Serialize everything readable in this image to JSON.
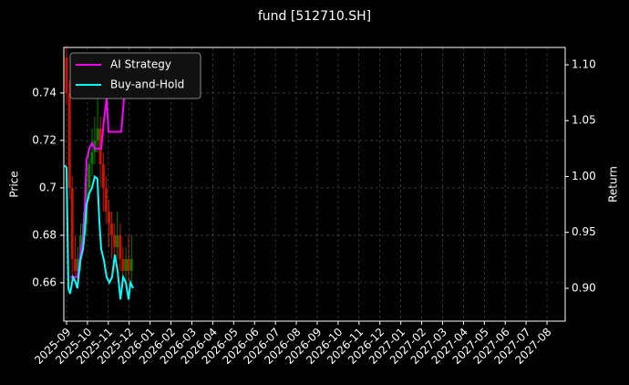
{
  "chart_data": {
    "type": "candlestick",
    "title": "fund [512710.SH]",
    "ylabel": "Price",
    "y2label": "Return",
    "x": [
      0,
      0.14,
      0.27,
      0.41,
      0.54,
      0.68,
      0.81,
      0.95,
      1.08,
      1.22,
      1.35,
      1.49,
      1.62,
      1.76,
      1.89,
      2.03,
      2.16,
      2.3,
      2.43,
      2.57,
      2.7,
      2.84,
      2.97,
      3.11
    ],
    "open": [
      0.755,
      0.74,
      0.7,
      0.67,
      0.665,
      0.67,
      0.68,
      0.685,
      0.7,
      0.71,
      0.715,
      0.72,
      0.725,
      0.71,
      0.7,
      0.69,
      0.685,
      0.68,
      0.675,
      0.68,
      0.67,
      0.665,
      0.67,
      0.665
    ],
    "high": [
      0.76,
      0.745,
      0.705,
      0.68,
      0.675,
      0.685,
      0.69,
      0.71,
      0.715,
      0.725,
      0.73,
      0.74,
      0.73,
      0.715,
      0.705,
      0.695,
      0.69,
      0.685,
      0.69,
      0.685,
      0.675,
      0.675,
      0.68,
      0.68
    ],
    "low": [
      0.735,
      0.695,
      0.66,
      0.66,
      0.66,
      0.665,
      0.675,
      0.68,
      0.695,
      0.705,
      0.71,
      0.715,
      0.7,
      0.69,
      0.685,
      0.675,
      0.67,
      0.665,
      0.67,
      0.665,
      0.66,
      0.66,
      0.66,
      0.66
    ],
    "close": [
      0.74,
      0.7,
      0.67,
      0.665,
      0.67,
      0.68,
      0.685,
      0.7,
      0.71,
      0.715,
      0.72,
      0.725,
      0.71,
      0.7,
      0.69,
      0.685,
      0.68,
      0.675,
      0.68,
      0.67,
      0.665,
      0.67,
      0.665,
      0.67
    ],
    "up_color": "#008000",
    "down_color": "#cc1100",
    "series": [
      {
        "name": "AI Strategy",
        "color": "#ff00ff",
        "axis": "y2",
        "x": [
          0.17,
          0.31,
          0.52,
          0.66,
          0.79,
          0.87,
          0.96,
          1.09,
          1.22,
          1.35,
          1.48,
          1.66,
          1.79,
          1.92,
          2.01,
          2.18,
          2.45,
          2.62,
          2.75,
          2.93,
          3.19
        ],
        "values": [
          0.91,
          0.91,
          0.91,
          0.93,
          0.945,
          0.97,
          1.015,
          1.025,
          1.03,
          1.025,
          1.025,
          1.025,
          1.05,
          1.07,
          1.04,
          1.04,
          1.04,
          1.04,
          1.07,
          1.09,
          1.1
        ]
      },
      {
        "name": "Buy-and-Hold",
        "color": "#00ffff",
        "axis": "y2",
        "x": [
          -0.09,
          0,
          0.09,
          0.17,
          0.31,
          0.44,
          0.52,
          0.66,
          0.79,
          0.87,
          0.96,
          1.09,
          1.22,
          1.35,
          1.48,
          1.57,
          1.66,
          1.79,
          1.92,
          2.05,
          2.18,
          2.31,
          2.45,
          2.58,
          2.71,
          2.84,
          2.97,
          3.06,
          3.19
        ],
        "values": [
          1.01,
          1.008,
          0.9,
          0.895,
          0.91,
          0.905,
          0.9,
          0.925,
          0.935,
          0.95,
          0.975,
          0.985,
          0.99,
          1.0,
          0.998,
          0.96,
          0.935,
          0.925,
          0.91,
          0.905,
          0.91,
          0.93,
          0.915,
          0.89,
          0.91,
          0.905,
          0.89,
          0.905,
          0.9
        ]
      }
    ],
    "xlim": [
      -0.13,
      23.87
    ],
    "xticks": [
      {
        "value": 0,
        "label": "2025-09"
      },
      {
        "value": 1,
        "label": "2025-10"
      },
      {
        "value": 2,
        "label": "2025-11"
      },
      {
        "value": 3,
        "label": "2025-12"
      },
      {
        "value": 4,
        "label": "2026-01"
      },
      {
        "value": 5,
        "label": "2026-02"
      },
      {
        "value": 6,
        "label": "2026-03"
      },
      {
        "value": 7,
        "label": "2026-04"
      },
      {
        "value": 8,
        "label": "2026-05"
      },
      {
        "value": 9,
        "label": "2026-06"
      },
      {
        "value": 10,
        "label": "2026-07"
      },
      {
        "value": 11,
        "label": "2026-08"
      },
      {
        "value": 12,
        "label": "2026-09"
      },
      {
        "value": 13,
        "label": "2026-10"
      },
      {
        "value": 14,
        "label": "2026-11"
      },
      {
        "value": 15,
        "label": "2026-12"
      },
      {
        "value": 16,
        "label": "2027-01"
      },
      {
        "value": 17,
        "label": "2027-02"
      },
      {
        "value": 18,
        "label": "2027-03"
      },
      {
        "value": 19,
        "label": "2027-04"
      },
      {
        "value": 20,
        "label": "2027-05"
      },
      {
        "value": 21,
        "label": "2027-06"
      },
      {
        "value": 22,
        "label": "2027-07"
      },
      {
        "value": 23,
        "label": "2027-08"
      }
    ],
    "ylim": [
      0.6438,
      0.7592
    ],
    "yticks": [
      0.66,
      0.68,
      0.7,
      0.72,
      0.74
    ],
    "y2lim": [
      0.8706,
      1.1155
    ],
    "y2ticks": [
      {
        "value": 0.9,
        "label": "0.90"
      },
      {
        "value": 0.95,
        "label": "0.95"
      },
      {
        "value": 1.0,
        "label": "1.00"
      },
      {
        "value": 1.05,
        "label": "1.05"
      },
      {
        "value": 1.1,
        "label": "1.10"
      }
    ],
    "grid": true,
    "legend": "upper left"
  }
}
